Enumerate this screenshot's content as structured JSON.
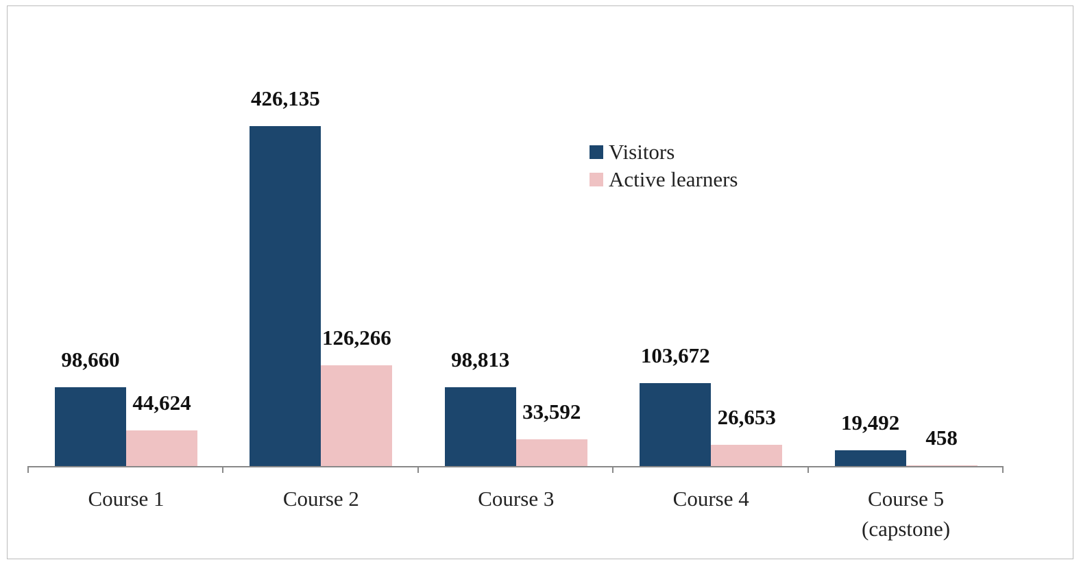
{
  "chart_data": {
    "type": "bar",
    "categories": [
      "Course 1",
      "Course 2",
      "Course 3",
      "Course 4",
      "Course 5 (capstone)"
    ],
    "series": [
      {
        "name": "Visitors",
        "color": "#1c466d",
        "values": [
          98660,
          426135,
          98813,
          103672,
          19492
        ],
        "value_labels": [
          "98,660",
          "426,135",
          "98,813",
          "103,672",
          "19,492"
        ]
      },
      {
        "name": "Active learners",
        "color": "#efc2c3",
        "values": [
          44624,
          126266,
          33592,
          26653,
          458
        ],
        "value_labels": [
          "44,624",
          "126,266",
          "33,592",
          "26,653",
          "458"
        ]
      }
    ]
  }
}
